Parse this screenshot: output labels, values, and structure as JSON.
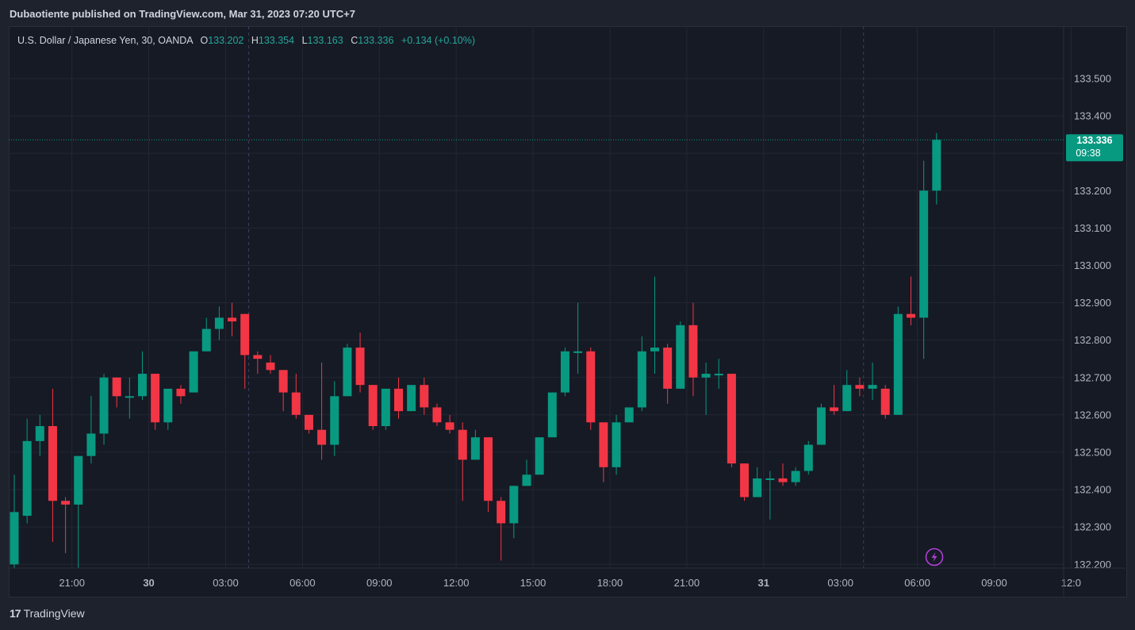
{
  "header": {
    "publisher_line": "Dubaotiente published on TradingView.com, Mar 31, 2023 07:20 UTC+7"
  },
  "legend": {
    "symbol": "U.S. Dollar / Japanese Yen, 30, OANDA",
    "o_label": "O",
    "o_value": "133.202",
    "h_label": "H",
    "h_value": "133.354",
    "l_label": "L",
    "l_value": "133.163",
    "c_label": "C",
    "c_value": "133.336",
    "change": "+0.134 (+0.10%)"
  },
  "last_price": {
    "value": "133.336",
    "countdown": "09:38"
  },
  "footer": {
    "brand": "TradingView",
    "mark": "17"
  },
  "colors": {
    "up": "#089981",
    "down": "#f23645",
    "grid": "#232733",
    "axis_text": "#b2b5be",
    "background": "#161a25",
    "tag": "#089981",
    "lightning": "#b03fd8"
  },
  "icons": {
    "lightning": "lightning-icon"
  },
  "chart_data": {
    "type": "candlestick",
    "ylim": [
      132.19,
      133.64
    ],
    "y_ticks": [
      132.2,
      132.3,
      132.4,
      132.5,
      132.6,
      132.7,
      132.8,
      132.9,
      133.0,
      133.1,
      133.2,
      133.3,
      133.4,
      133.5
    ],
    "y_tick_labels": [
      "132.200",
      "132.300",
      "132.400",
      "132.500",
      "132.600",
      "132.700",
      "132.800",
      "132.900",
      "133.000",
      "133.100",
      "133.200",
      "133.300",
      "133.400",
      "133.500"
    ],
    "x_ticks": [
      {
        "label": "21:00",
        "index": 4.5,
        "bold": false
      },
      {
        "label": "30",
        "index": 10.5,
        "bold": true
      },
      {
        "label": "03:00",
        "index": 16.5,
        "bold": false
      },
      {
        "label": "06:00",
        "index": 22.5,
        "bold": false
      },
      {
        "label": "09:00",
        "index": 28.5,
        "bold": false
      },
      {
        "label": "12:00",
        "index": 34.5,
        "bold": false
      },
      {
        "label": "15:00",
        "index": 40.5,
        "bold": false
      },
      {
        "label": "18:00",
        "index": 46.5,
        "bold": false
      },
      {
        "label": "21:00",
        "index": 52.5,
        "bold": false
      },
      {
        "label": "31",
        "index": 58.5,
        "bold": true
      },
      {
        "label": "03:00",
        "index": 64.5,
        "bold": false
      },
      {
        "label": "06:00",
        "index": 70.5,
        "bold": false
      },
      {
        "label": "09:00",
        "index": 76.5,
        "bold": false
      },
      {
        "label": "12:0",
        "index": 82.5,
        "bold": false
      }
    ],
    "session_breaks": [
      18.3,
      66.3
    ],
    "grid": true,
    "candles": [
      [
        132.2,
        132.34,
        132.19,
        132.44
      ],
      [
        132.33,
        132.53,
        132.31,
        132.59
      ],
      [
        132.53,
        132.57,
        132.49,
        132.6
      ],
      [
        132.57,
        132.37,
        132.26,
        132.67
      ],
      [
        132.37,
        132.36,
        132.23,
        132.38
      ],
      [
        132.36,
        132.49,
        132.19,
        132.49
      ],
      [
        132.49,
        132.55,
        132.47,
        132.65
      ],
      [
        132.55,
        132.7,
        132.52,
        132.71
      ],
      [
        132.7,
        132.65,
        132.62,
        132.7
      ],
      [
        132.65,
        132.65,
        132.59,
        132.7
      ],
      [
        132.65,
        132.71,
        132.64,
        132.77
      ],
      [
        132.71,
        132.58,
        132.56,
        132.71
      ],
      [
        132.58,
        132.67,
        132.56,
        132.67
      ],
      [
        132.67,
        132.65,
        132.63,
        132.68
      ],
      [
        132.66,
        132.77,
        132.66,
        132.77
      ],
      [
        132.77,
        132.83,
        132.77,
        132.86
      ],
      [
        132.83,
        132.86,
        132.8,
        132.89
      ],
      [
        132.86,
        132.85,
        132.81,
        132.9
      ],
      [
        132.87,
        132.76,
        132.67,
        132.87
      ],
      [
        132.76,
        132.75,
        132.71,
        132.77
      ],
      [
        132.74,
        132.72,
        132.71,
        132.76
      ],
      [
        132.72,
        132.66,
        132.61,
        132.72
      ],
      [
        132.66,
        132.6,
        132.59,
        132.71
      ],
      [
        132.6,
        132.56,
        132.55,
        132.6
      ],
      [
        132.56,
        132.52,
        132.48,
        132.74
      ],
      [
        132.52,
        132.65,
        132.49,
        132.69
      ],
      [
        132.65,
        132.78,
        132.65,
        132.79
      ],
      [
        132.78,
        132.68,
        132.66,
        132.82
      ],
      [
        132.68,
        132.57,
        132.56,
        132.68
      ],
      [
        132.57,
        132.67,
        132.56,
        132.67
      ],
      [
        132.67,
        132.61,
        132.59,
        132.7
      ],
      [
        132.61,
        132.68,
        132.61,
        132.68
      ],
      [
        132.68,
        132.62,
        132.6,
        132.7
      ],
      [
        132.62,
        132.58,
        132.57,
        132.63
      ],
      [
        132.58,
        132.56,
        132.55,
        132.6
      ],
      [
        132.56,
        132.48,
        132.37,
        132.58
      ],
      [
        132.48,
        132.54,
        132.48,
        132.56
      ],
      [
        132.54,
        132.37,
        132.34,
        132.54
      ],
      [
        132.37,
        132.31,
        132.21,
        132.38
      ],
      [
        132.31,
        132.41,
        132.27,
        132.41
      ],
      [
        132.41,
        132.44,
        132.41,
        132.48
      ],
      [
        132.44,
        132.54,
        132.44,
        132.54
      ],
      [
        132.54,
        132.66,
        132.54,
        132.66
      ],
      [
        132.66,
        132.77,
        132.65,
        132.78
      ],
      [
        132.77,
        132.77,
        132.71,
        132.9
      ],
      [
        132.77,
        132.58,
        132.56,
        132.78
      ],
      [
        132.58,
        132.46,
        132.42,
        132.58
      ],
      [
        132.46,
        132.58,
        132.44,
        132.6
      ],
      [
        132.58,
        132.62,
        132.58,
        132.62
      ],
      [
        132.62,
        132.77,
        132.61,
        132.81
      ],
      [
        132.77,
        132.78,
        132.71,
        132.97
      ],
      [
        132.78,
        132.67,
        132.63,
        132.79
      ],
      [
        132.67,
        132.84,
        132.67,
        132.85
      ],
      [
        132.84,
        132.7,
        132.65,
        132.9
      ],
      [
        132.7,
        132.71,
        132.6,
        132.74
      ],
      [
        132.71,
        132.71,
        132.67,
        132.75
      ],
      [
        132.71,
        132.47,
        132.46,
        132.71
      ],
      [
        132.47,
        132.38,
        132.37,
        132.47
      ],
      [
        132.38,
        132.43,
        132.38,
        132.46
      ],
      [
        132.43,
        132.43,
        132.32,
        132.45
      ],
      [
        132.43,
        132.42,
        132.41,
        132.47
      ],
      [
        132.42,
        132.45,
        132.41,
        132.46
      ],
      [
        132.45,
        132.52,
        132.44,
        132.53
      ],
      [
        132.52,
        132.62,
        132.52,
        132.63
      ],
      [
        132.62,
        132.61,
        132.6,
        132.68
      ],
      [
        132.61,
        132.68,
        132.61,
        132.72
      ],
      [
        132.68,
        132.67,
        132.65,
        132.7
      ],
      [
        132.67,
        132.68,
        132.64,
        132.74
      ],
      [
        132.67,
        132.6,
        132.59,
        132.68
      ],
      [
        132.6,
        132.87,
        132.6,
        132.89
      ],
      [
        132.87,
        132.86,
        132.84,
        132.97
      ],
      [
        132.86,
        133.2,
        132.75,
        133.28
      ],
      [
        133.2,
        133.336,
        133.163,
        133.354
      ]
    ]
  }
}
